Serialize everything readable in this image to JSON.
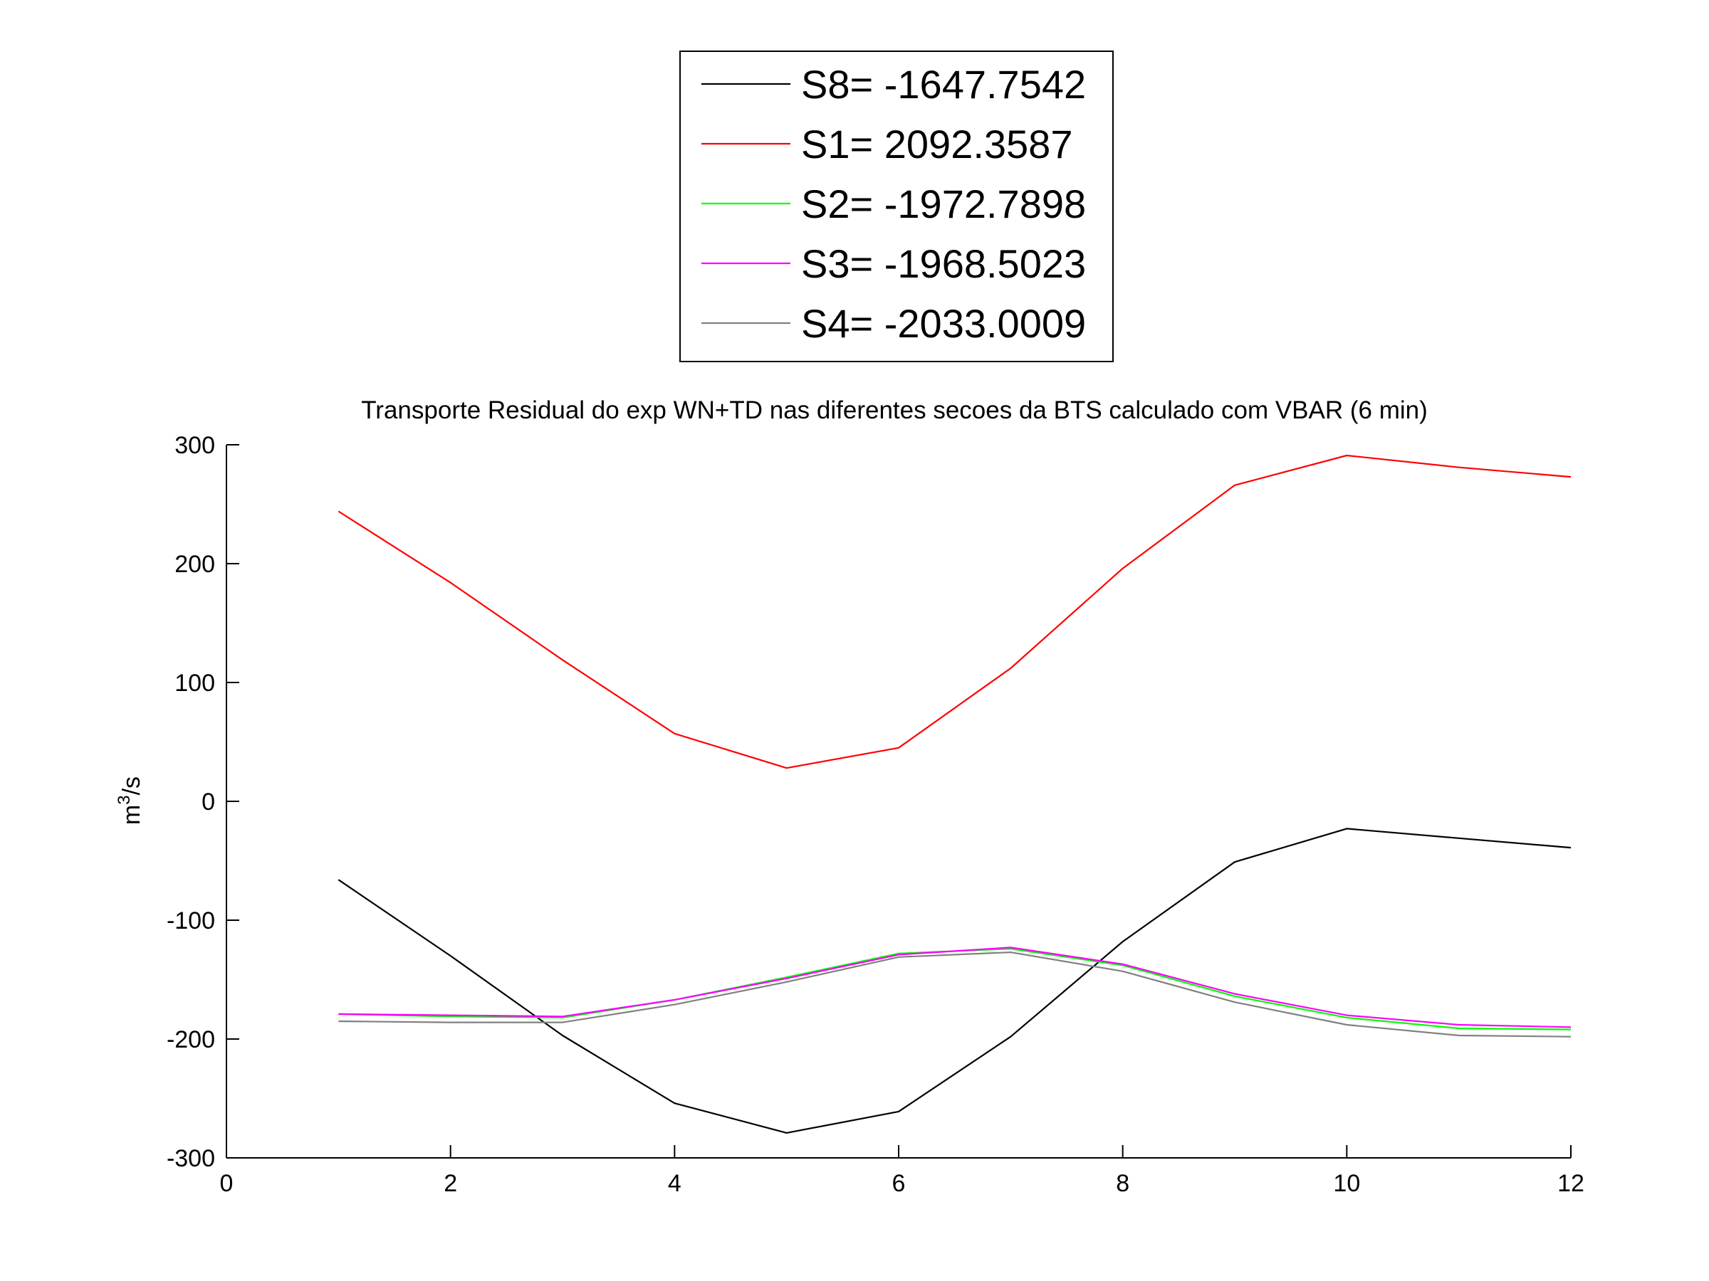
{
  "chart_data": {
    "type": "line",
    "title": "Transporte Residual do exp WN+TD nas diferentes secoes da BTS calculado com VBAR (6 min)",
    "xlabel": "",
    "ylabel_base": "m",
    "ylabel_sup": "3",
    "ylabel_tail": "/s",
    "xlim": [
      0,
      12
    ],
    "ylim": [
      -300,
      300
    ],
    "xticks": [
      0,
      2,
      4,
      6,
      8,
      10,
      12
    ],
    "yticks": [
      -300,
      -200,
      -100,
      0,
      100,
      200,
      300
    ],
    "grid": false,
    "legend_position": "top-center, outside the axes",
    "x": [
      1,
      2,
      3,
      4,
      5,
      6,
      7,
      8,
      9,
      10,
      11,
      12
    ],
    "series": [
      {
        "name": "S8= -1647.7542",
        "color": "#000000",
        "values": [
          -66,
          -130,
          -197,
          -254,
          -279,
          -261,
          -198,
          -118,
          -51,
          -23,
          -31,
          -39
        ]
      },
      {
        "name": "S1= 2092.3587",
        "color": "#ff0000",
        "values": [
          244,
          184,
          119,
          57,
          28,
          45,
          112,
          196,
          266,
          291,
          281,
          273
        ]
      },
      {
        "name": "S2= -1972.7898",
        "color": "#00ff00",
        "values": [
          -179,
          -181,
          -182,
          -167,
          -148,
          -128,
          -124,
          -138,
          -164,
          -182,
          -191,
          -192
        ]
      },
      {
        "name": "S3= -1968.5023",
        "color": "#ff00ff",
        "values": [
          -179,
          -180,
          -181,
          -167,
          -149,
          -129,
          -123,
          -137,
          -162,
          -180,
          -188,
          -190
        ]
      },
      {
        "name": "S4= -2033.0009",
        "color": "#808080",
        "values": [
          -185,
          -186,
          -186,
          -171,
          -152,
          -131,
          -127,
          -143,
          -169,
          -188,
          -197,
          -198
        ]
      }
    ]
  }
}
